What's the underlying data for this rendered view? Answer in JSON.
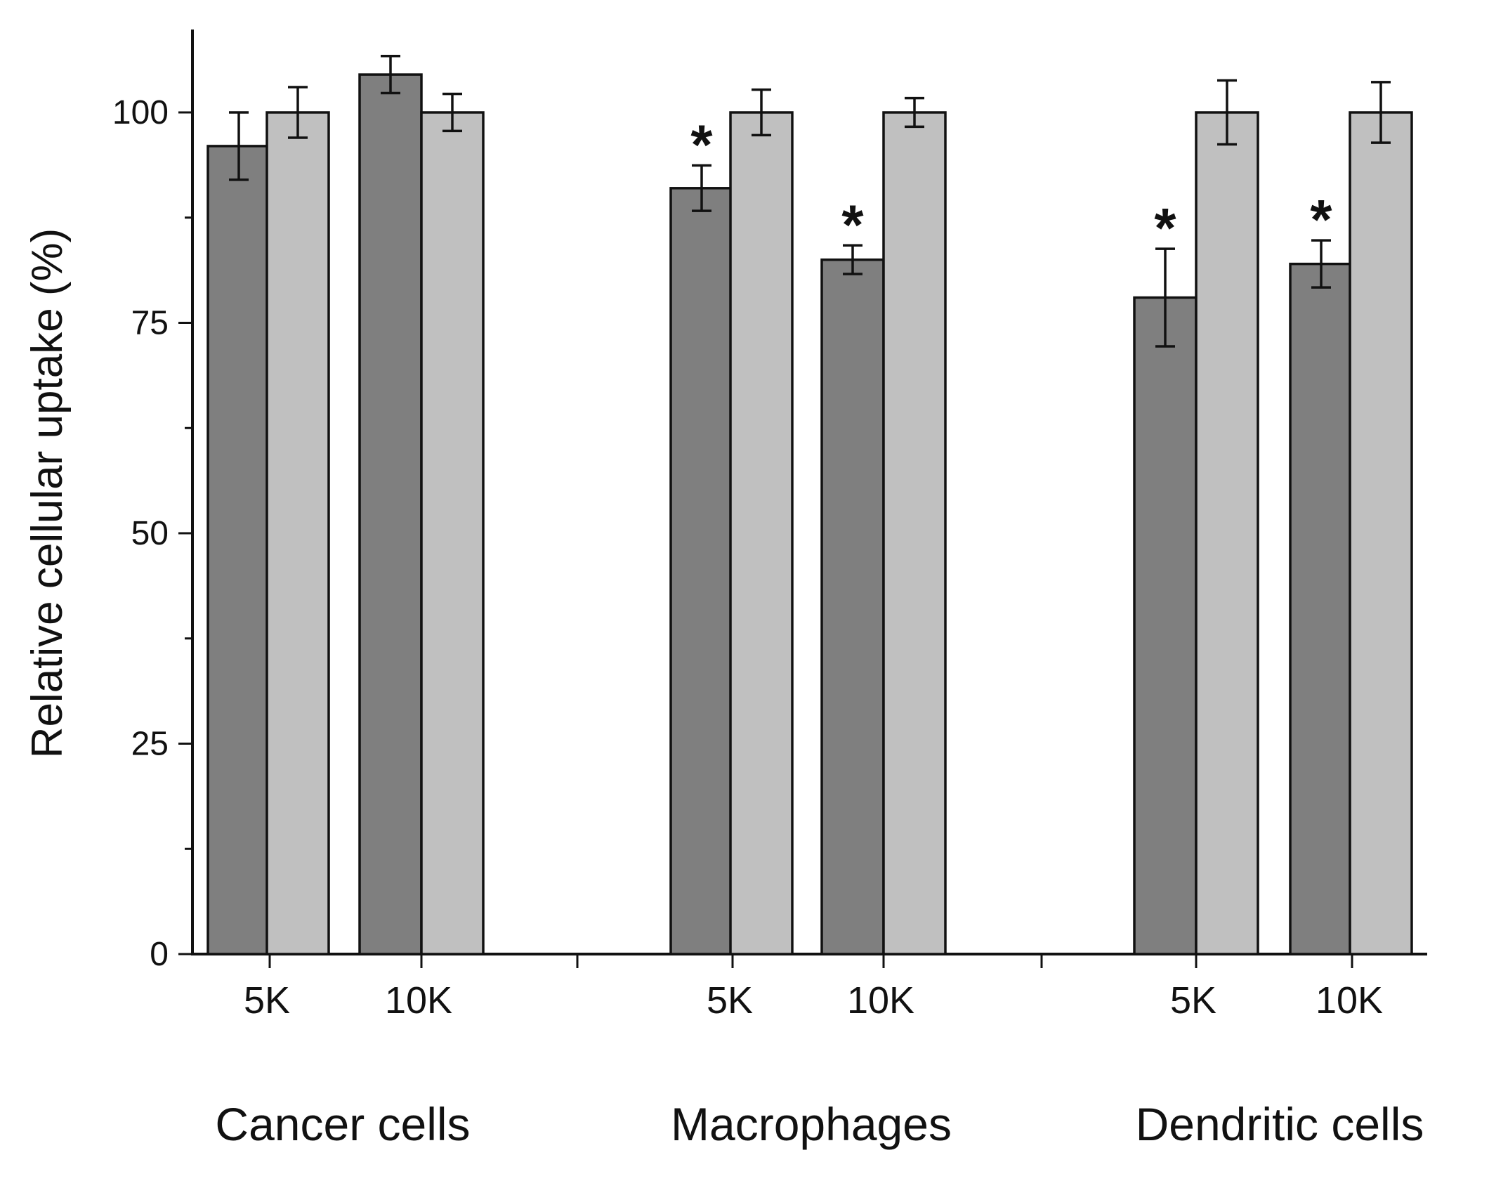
{
  "chart_data": {
    "type": "bar",
    "title": "",
    "xlabel": "",
    "ylabel": "Relative cellular uptake (%)",
    "ylim": [
      0,
      110
    ],
    "yticks": [
      0,
      25,
      50,
      75,
      100
    ],
    "grid": false,
    "legend": "none",
    "colors": {
      "dark": "#7f7f7f",
      "light": "#c0c0c0",
      "axis": "#111111"
    },
    "groups": [
      {
        "label": "Cancer cells",
        "subgroups": [
          {
            "label": "5K",
            "dark": 96,
            "dark_err": 4,
            "dark_star": false,
            "light": 100,
            "light_err": 3,
            "light_star": false
          },
          {
            "label": "10K",
            "dark": 104.5,
            "dark_err": 2.2,
            "dark_star": false,
            "light": 100,
            "light_err": 2.2,
            "light_star": false
          }
        ]
      },
      {
        "label": "Macrophages",
        "subgroups": [
          {
            "label": "5K",
            "dark": 91,
            "dark_err": 2.7,
            "dark_star": true,
            "light": 100,
            "light_err": 2.7,
            "light_star": false
          },
          {
            "label": "10K",
            "dark": 82.5,
            "dark_err": 1.7,
            "dark_star": true,
            "light": 100,
            "light_err": 1.7,
            "light_star": false
          }
        ]
      },
      {
        "label": "Dendritic cells",
        "subgroups": [
          {
            "label": "5K",
            "dark": 78,
            "dark_err": 5.8,
            "dark_star": true,
            "light": 100,
            "light_err": 3.8,
            "light_star": false
          },
          {
            "label": "10K",
            "dark": 82,
            "dark_err": 2.8,
            "dark_star": true,
            "light": 100,
            "light_err": 3.6,
            "light_star": false
          }
        ]
      }
    ],
    "annotation": "*"
  }
}
